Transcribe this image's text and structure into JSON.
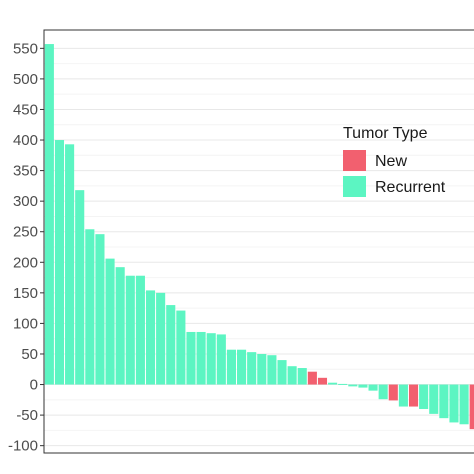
{
  "chart_data": {
    "type": "bar",
    "title": "",
    "xlabel": "",
    "ylabel": "",
    "ylim": [
      -112,
      580
    ],
    "yticks": [
      -100,
      -50,
      0,
      50,
      100,
      150,
      200,
      250,
      300,
      350,
      400,
      450,
      500,
      550
    ],
    "ytick_labels": [
      "-100",
      "-50",
      "0",
      "50",
      "100",
      "150",
      "200",
      "250",
      "300",
      "350",
      "400",
      "450",
      "500",
      "550"
    ],
    "grid": true,
    "legend_position": "right",
    "legend": {
      "title": "Tumor Type",
      "items": [
        {
          "label": "New",
          "color": "#f2606f"
        },
        {
          "label": "Recurrent",
          "color": "#5cf5c2"
        }
      ]
    },
    "colors": {
      "New": "#f2606f",
      "Recurrent": "#5cf5c2"
    },
    "bars": [
      {
        "value": 557,
        "type": "Recurrent"
      },
      {
        "value": 400,
        "type": "Recurrent"
      },
      {
        "value": 393,
        "type": "Recurrent"
      },
      {
        "value": 318,
        "type": "Recurrent"
      },
      {
        "value": 254,
        "type": "Recurrent"
      },
      {
        "value": 246,
        "type": "Recurrent"
      },
      {
        "value": 206,
        "type": "Recurrent"
      },
      {
        "value": 192,
        "type": "Recurrent"
      },
      {
        "value": 178,
        "type": "Recurrent"
      },
      {
        "value": 178,
        "type": "Recurrent"
      },
      {
        "value": 154,
        "type": "Recurrent"
      },
      {
        "value": 150,
        "type": "Recurrent"
      },
      {
        "value": 130,
        "type": "Recurrent"
      },
      {
        "value": 121,
        "type": "Recurrent"
      },
      {
        "value": 86,
        "type": "Recurrent"
      },
      {
        "value": 86,
        "type": "Recurrent"
      },
      {
        "value": 84,
        "type": "Recurrent"
      },
      {
        "value": 82,
        "type": "Recurrent"
      },
      {
        "value": 57,
        "type": "Recurrent"
      },
      {
        "value": 57,
        "type": "Recurrent"
      },
      {
        "value": 53,
        "type": "Recurrent"
      },
      {
        "value": 50,
        "type": "Recurrent"
      },
      {
        "value": 48,
        "type": "Recurrent"
      },
      {
        "value": 40,
        "type": "Recurrent"
      },
      {
        "value": 30,
        "type": "Recurrent"
      },
      {
        "value": 27,
        "type": "Recurrent"
      },
      {
        "value": 21,
        "type": "New"
      },
      {
        "value": 11,
        "type": "New"
      },
      {
        "value": 3,
        "type": "Recurrent"
      },
      {
        "value": 1,
        "type": "Recurrent"
      },
      {
        "value": -3,
        "type": "Recurrent"
      },
      {
        "value": -5,
        "type": "Recurrent"
      },
      {
        "value": -10,
        "type": "Recurrent"
      },
      {
        "value": -24,
        "type": "Recurrent"
      },
      {
        "value": -26,
        "type": "New"
      },
      {
        "value": -36,
        "type": "Recurrent"
      },
      {
        "value": -36,
        "type": "New"
      },
      {
        "value": -40,
        "type": "Recurrent"
      },
      {
        "value": -48,
        "type": "Recurrent"
      },
      {
        "value": -55,
        "type": "Recurrent"
      },
      {
        "value": -62,
        "type": "Recurrent"
      },
      {
        "value": -65,
        "type": "Recurrent"
      },
      {
        "value": -73,
        "type": "New"
      }
    ]
  }
}
